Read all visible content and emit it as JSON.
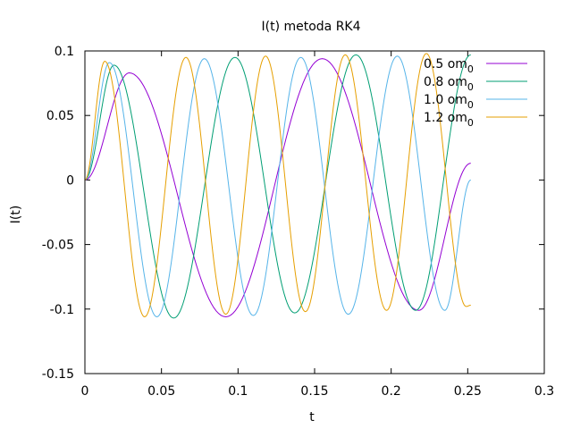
{
  "chart_data": {
    "type": "line",
    "title": "I(t) metoda RK4",
    "xlabel": "t",
    "ylabel": "I(t)",
    "xlim": [
      0,
      0.3
    ],
    "ylim": [
      -0.15,
      0.1
    ],
    "xticks": [
      0,
      0.05,
      0.1,
      0.15,
      0.2,
      0.25,
      0.3
    ],
    "yticks": [
      -0.15,
      -0.1,
      -0.05,
      0,
      0.05,
      0.1
    ],
    "xtick_labels": [
      "0",
      "0.05",
      "0.1",
      "0.15",
      "0.2",
      "0.25",
      "0.3"
    ],
    "ytick_labels": [
      "-0.15",
      "-0.1",
      "-0.05",
      "0",
      "0.05",
      "0.1"
    ],
    "grid": false,
    "legend_position": "top-right",
    "series": [
      {
        "name": "0.5 om",
        "name_sub": "0",
        "color": "#9400d3",
        "x": [
          0,
          0.029,
          0.092,
          0.155,
          0.218,
          0.252
        ],
        "y": [
          0,
          0.083,
          -0.106,
          0.094,
          -0.101,
          0.013
        ]
      },
      {
        "name": "0.8 om",
        "name_sub": "0",
        "color": "#009e73",
        "x": [
          0,
          0.019,
          0.058,
          0.098,
          0.137,
          0.177,
          0.216,
          0.252
        ],
        "y": [
          0,
          0.089,
          -0.107,
          0.095,
          -0.103,
          0.097,
          -0.101,
          0.097
        ]
      },
      {
        "name": "1.0 om",
        "name_sub": "0",
        "color": "#56b4e9",
        "x": [
          0,
          0.016,
          0.047,
          0.078,
          0.11,
          0.141,
          0.172,
          0.204,
          0.235,
          0.252
        ],
        "y": [
          0,
          0.091,
          -0.106,
          0.094,
          -0.105,
          0.095,
          -0.104,
          0.096,
          -0.101,
          0.0
        ]
      },
      {
        "name": "1.2 om",
        "name_sub": "0",
        "color": "#e69f00",
        "x": [
          0,
          0.013,
          0.039,
          0.066,
          0.092,
          0.118,
          0.144,
          0.17,
          0.197,
          0.223,
          0.249,
          0.252
        ],
        "y": [
          0,
          0.092,
          -0.106,
          0.095,
          -0.104,
          0.096,
          -0.102,
          0.097,
          -0.101,
          0.098,
          -0.098,
          -0.097
        ]
      }
    ]
  }
}
